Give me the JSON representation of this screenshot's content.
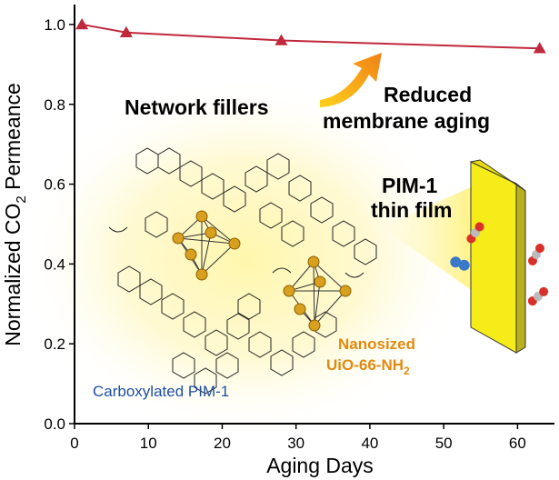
{
  "chart_data": {
    "type": "line",
    "xlabel": "Aging Days",
    "ylabel": "Normalized CO2 Permeance",
    "xlim": [
      0,
      65
    ],
    "ylim": [
      0,
      1.05
    ],
    "xticks": [
      "0",
      "10",
      "20",
      "30",
      "40",
      "50",
      "60"
    ],
    "yticks": [
      "0.0",
      "0.2",
      "0.4",
      "0.6",
      "0.8",
      "1.0"
    ],
    "series": [
      {
        "x": [
          1,
          7,
          28,
          63
        ],
        "y": [
          1.0,
          0.98,
          0.96,
          0.94
        ],
        "color": "#C0283C",
        "marker": "triangle"
      }
    ],
    "annotations": {
      "network_fillers": "Network fillers",
      "reduced_line1": "Reduced",
      "reduced_line2": "membrane aging",
      "pim_line1": "PIM-1",
      "pim_line2": "thin film",
      "nanosized": "Nanosized",
      "uio": "UiO-66-NH",
      "uio_sub": "2",
      "carboxylated": "Carboxylated PIM-1"
    },
    "colors": {
      "series": "#C0283C",
      "film": "#F5EC1A",
      "arrow_start": "#FFD21A",
      "arrow_end": "#F08018",
      "orange_text": "#E08A10",
      "blue_text": "#1F4FA0"
    }
  }
}
